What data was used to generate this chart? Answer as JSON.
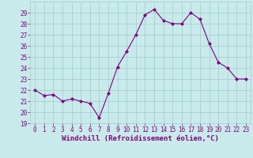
{
  "x": [
    0,
    1,
    2,
    3,
    4,
    5,
    6,
    7,
    8,
    9,
    10,
    11,
    12,
    13,
    14,
    15,
    16,
    17,
    18,
    19,
    20,
    21,
    22,
    23
  ],
  "y": [
    22.0,
    21.5,
    21.6,
    21.0,
    21.2,
    21.0,
    20.8,
    19.5,
    21.7,
    24.1,
    25.5,
    27.0,
    28.8,
    29.3,
    28.3,
    28.0,
    28.0,
    29.0,
    28.4,
    26.2,
    24.5,
    24.0,
    23.0,
    23.0
  ],
  "line_color": "#800080",
  "marker": "D",
  "marker_size": 2,
  "bg_color": "#c8eaea",
  "grid_color": "#a0cccc",
  "xlabel": "Windchill (Refroidissement éolien,°C)",
  "xlabel_color": "#800080",
  "ylim": [
    19,
    30
  ],
  "xlim": [
    -0.5,
    23.5
  ],
  "yticks": [
    19,
    20,
    21,
    22,
    23,
    24,
    25,
    26,
    27,
    28,
    29
  ],
  "xticks": [
    0,
    1,
    2,
    3,
    4,
    5,
    6,
    7,
    8,
    9,
    10,
    11,
    12,
    13,
    14,
    15,
    16,
    17,
    18,
    19,
    20,
    21,
    22,
    23
  ],
  "tick_color": "#800080",
  "tick_labelsize": 5.5,
  "xlabel_fontsize": 6.5,
  "line_width": 0.8
}
